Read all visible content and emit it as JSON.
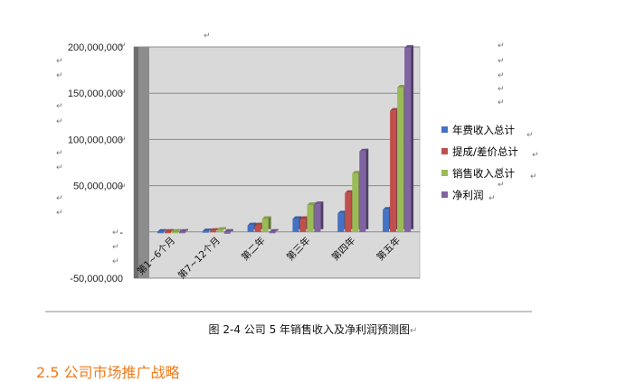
{
  "chart_data": {
    "type": "bar",
    "categories": [
      "第1~6个月",
      "第7~12个月",
      "第二年",
      "第三年",
      "第四年",
      "第五年"
    ],
    "series": [
      {
        "name": "年费收入总计",
        "color": "#4472c4",
        "values": [
          0,
          600000,
          7000000,
          14000000,
          20000000,
          24000000
        ]
      },
      {
        "name": "提成/差价总计",
        "color": "#c0504d",
        "values": [
          0,
          1000000,
          7000000,
          14000000,
          42000000,
          131000000
        ]
      },
      {
        "name": "销售收入总计",
        "color": "#9bbb59",
        "values": [
          0,
          2000000,
          14000000,
          29000000,
          63000000,
          156000000
        ]
      },
      {
        "name": "净利润",
        "color": "#8064a2",
        "values": [
          0,
          -2000000,
          -1000000,
          30000000,
          87000000,
          199000000
        ]
      }
    ],
    "yticks": [
      "200,000,000",
      "150,000,000",
      "100,000,000",
      "50,000,000",
      "-",
      "-50,000,000"
    ],
    "ylim": [
      -50000000,
      200000000
    ],
    "grid": true,
    "legend": "right"
  },
  "caption": "图 2-4 公司 5 年销售收入及净利润预测图",
  "heading": "2.5 公司市场推广战略",
  "para_mark": "↵"
}
